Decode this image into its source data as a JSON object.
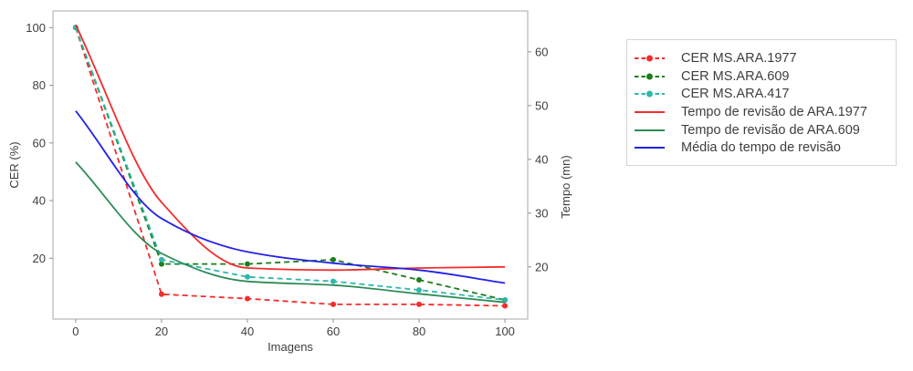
{
  "axes": {
    "x_ticks": [
      0,
      20,
      40,
      60,
      80,
      100
    ],
    "y_left_ticks": [
      20,
      40,
      60,
      80,
      100
    ],
    "y_right_ticks": [
      20,
      30,
      40,
      50,
      60
    ]
  },
  "chart_data": {
    "type": "line",
    "title": "",
    "xlabel": "Imagens",
    "ylabel_left": "CER (%)",
    "ylabel_right": "Tempo (mn)",
    "x": [
      0,
      20,
      40,
      60,
      80,
      100
    ],
    "x_range": [
      -5.3,
      105.3
    ],
    "y_left_range": [
      -1.1,
      105.8
    ],
    "y_right_range": [
      10.3,
      67.6
    ],
    "grid": false,
    "legend_position": "outside-right",
    "series": [
      {
        "name": "CER MS.ARA.1977",
        "axis": "left",
        "style": "dashed",
        "marker": true,
        "color": "#f42c2c",
        "values": [
          100,
          7.5,
          6,
          4,
          4,
          3.5
        ]
      },
      {
        "name": "CER MS.ARA.609",
        "axis": "left",
        "style": "dashed",
        "marker": true,
        "color": "#1b7e1b",
        "values": [
          100,
          18,
          18,
          19.5,
          12.5,
          5.5
        ]
      },
      {
        "name": "CER MS.ARA.417",
        "axis": "left",
        "style": "dashed",
        "marker": true,
        "color": "#2eb7ac",
        "values": [
          100,
          19.5,
          13.5,
          12,
          9,
          5.5
        ]
      },
      {
        "name": "Tempo de revisão de ARA.1977",
        "axis": "right",
        "style": "solid",
        "marker": false,
        "color": "#f42c2c",
        "values": [
          65,
          32,
          19.8,
          19.4,
          19.8,
          20
        ]
      },
      {
        "name": "Tempo de revisão de ARA.609",
        "axis": "right",
        "style": "solid",
        "marker": false,
        "color": "#2e8b57",
        "values": [
          39.5,
          22.5,
          17.3,
          16.6,
          15,
          13.4
        ]
      },
      {
        "name": "Média do tempo de revisão",
        "axis": "right",
        "style": "solid",
        "marker": false,
        "color": "#2121e8",
        "values": [
          49,
          29,
          22.8,
          20.7,
          19.4,
          17
        ]
      }
    ]
  },
  "colors": {
    "spine": "#a9a9a9",
    "tick_mark": "#8f8f8f",
    "text": "#3e3e3e",
    "legend_border": "#d5d5d5",
    "background": "#ffffff"
  }
}
